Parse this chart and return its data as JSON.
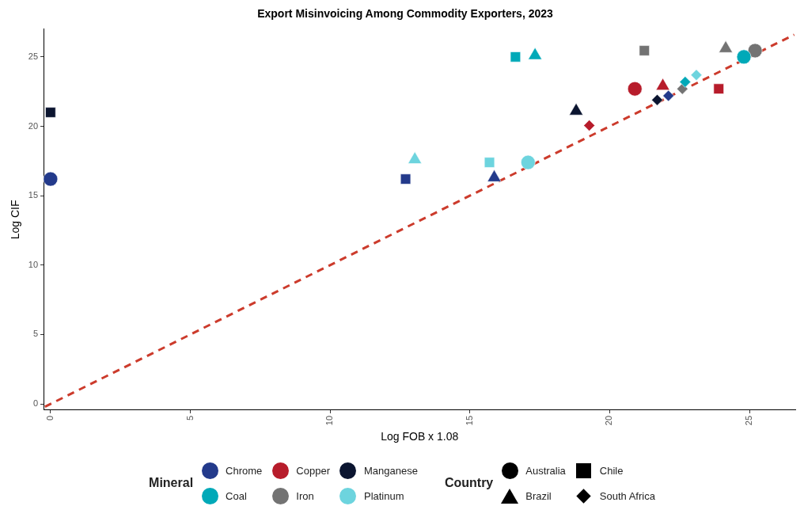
{
  "chart_data": {
    "type": "scatter",
    "title": "Export Misinvoicing Among Commodity Exporters, 2023",
    "xlabel": "Log FOB x 1.08",
    "ylabel": "Log CIF",
    "xlim": [
      -0.25,
      26.65
    ],
    "ylim": [
      -0.45,
      27
    ],
    "xticks": [
      0,
      5,
      10,
      15,
      20,
      25
    ],
    "yticks": [
      0,
      5,
      10,
      15,
      20,
      25
    ],
    "legend": "bottom",
    "legend_title": "Mineral",
    "annotations": [
      "Country",
      "Australia",
      "Chile",
      "Brazil",
      "South Africa"
    ],
    "series": [
      {
        "name": "Chrome",
        "color": "#233a8b",
        "marker": "circle",
        "x": [
          0
        ],
        "values": [
          16.2
        ]
      },
      {
        "color": "#233a8b",
        "marker": "square",
        "x": [
          12.7
        ],
        "values": [
          16.2
        ]
      },
      {
        "color": "#233a8b",
        "marker": "triangle",
        "x": [
          15.87
        ],
        "values": [
          16.3
        ]
      },
      {
        "color": "#233a8b",
        "marker": "diamond",
        "x": [
          22.1
        ],
        "values": [
          22.2
        ]
      },
      {
        "name": "Copper",
        "color": "#b71c2b",
        "marker": "circle",
        "x": [
          20.9
        ],
        "values": [
          22.7
        ]
      },
      {
        "color": "#b71c2b",
        "marker": "square",
        "x": [
          23.9
        ],
        "values": [
          22.7
        ]
      },
      {
        "color": "#b71c2b",
        "marker": "triangle",
        "x": [
          21.9
        ],
        "values": [
          22.9
        ]
      },
      {
        "color": "#b71c2b",
        "marker": "diamond",
        "x": [
          19.27
        ],
        "values": [
          20.06
        ]
      },
      {
        "name": "Manganese",
        "color": "#0b1530",
        "marker": "square",
        "x": [
          0
        ],
        "values": [
          21.0
        ]
      },
      {
        "color": "#0b1530",
        "marker": "triangle",
        "x": [
          18.8
        ],
        "values": [
          21.1
        ]
      },
      {
        "color": "#0b1530",
        "marker": "diamond",
        "x": [
          21.7
        ],
        "values": [
          21.9
        ]
      },
      {
        "name": "Coal",
        "color": "#00a9b8",
        "marker": "circle",
        "x": [
          24.8
        ],
        "values": [
          25.0
        ]
      },
      {
        "color": "#00a9b8",
        "marker": "square",
        "x": [
          16.63
        ],
        "values": [
          25.0
        ]
      },
      {
        "color": "#00a9b8",
        "marker": "triangle",
        "x": [
          17.33
        ],
        "values": [
          25.1
        ]
      },
      {
        "color": "#00a9b8",
        "marker": "diamond",
        "x": [
          22.7
        ],
        "values": [
          23.2
        ]
      },
      {
        "name": "Iron",
        "color": "#737373",
        "marker": "circle",
        "x": [
          25.2
        ],
        "values": [
          25.45
        ]
      },
      {
        "color": "#737373",
        "marker": "square",
        "x": [
          21.24
        ],
        "values": [
          25.45
        ]
      },
      {
        "color": "#737373",
        "marker": "triangle",
        "x": [
          24.15
        ],
        "values": [
          25.6
        ]
      },
      {
        "color": "#737373",
        "marker": "diamond",
        "x": [
          22.6
        ],
        "values": [
          22.7
        ]
      },
      {
        "name": "Platinum",
        "color": "#6dd4de",
        "marker": "circle",
        "x": [
          17.08
        ],
        "values": [
          17.4
        ]
      },
      {
        "color": "#6dd4de",
        "marker": "square",
        "x": [
          15.7
        ],
        "values": [
          17.4
        ]
      },
      {
        "color": "#6dd4de",
        "marker": "triangle",
        "x": [
          13.03
        ],
        "values": [
          17.6
        ]
      },
      {
        "color": "#6dd4de",
        "marker": "diamond",
        "x": [
          23.1
        ],
        "values": [
          23.7
        ]
      },
      {
        "type": "line",
        "color": "#cc3b2c",
        "line_style": "dashed",
        "marker": "none",
        "x": [
          -0.2,
          26.6
        ],
        "values": [
          -0.2,
          26.6
        ]
      }
    ]
  }
}
